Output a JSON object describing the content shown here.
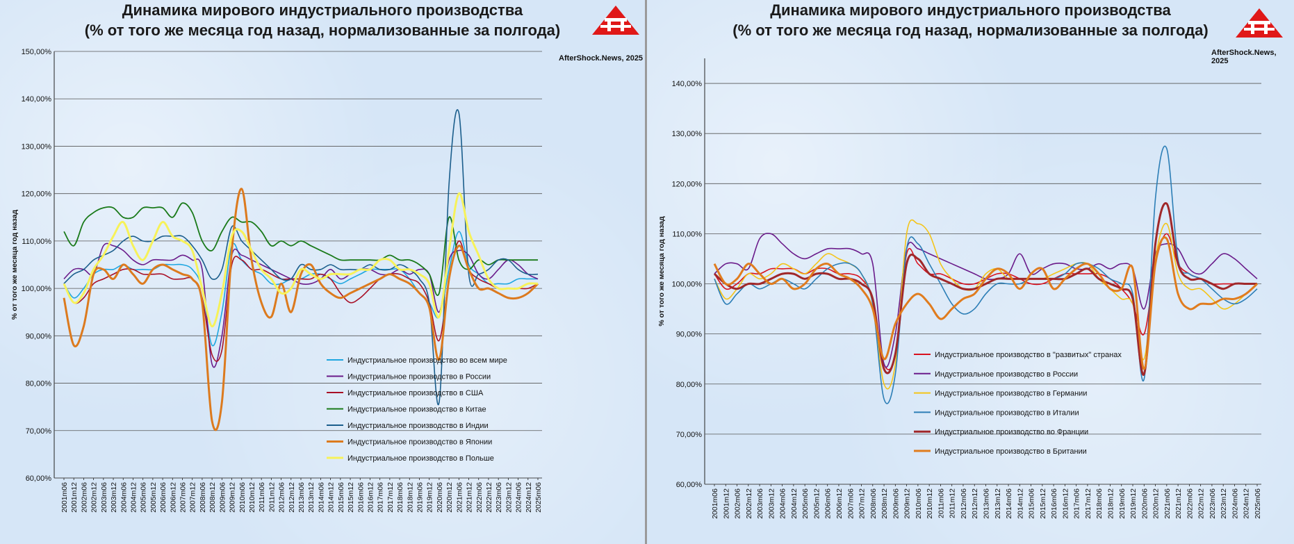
{
  "chart_data": [
    {
      "type": "line",
      "title_line1": "Динамика мирового индустриального производства",
      "title_line2": "(% от того же месяца год назад, нормализованные за полгода)",
      "credit": "AfterShock.News, 2025",
      "ylabel": "% от того же месяца год назад",
      "ylim": [
        60,
        150
      ],
      "yticks": [
        "60,00%",
        "70,00%",
        "80,00%",
        "90,00%",
        "100,00%",
        "110,00%",
        "120,00%",
        "130,00%",
        "140,00%",
        "150,00%"
      ],
      "x_tick_labels": [
        "2001m06",
        "2001m12",
        "2002m06",
        "2002m12",
        "2003m06",
        "2003m12",
        "2004m06",
        "2004m12",
        "2005m06",
        "2005m12",
        "2006m06",
        "2006m12",
        "2007m06",
        "2007m12",
        "2008m06",
        "2008m12",
        "2009m06",
        "2009m12",
        "2010m06",
        "2010m12",
        "2011m06",
        "2011m12",
        "2012m06",
        "2012m12",
        "2013m06",
        "2013m12",
        "2014m06",
        "2014m12",
        "2015m06",
        "2015m12",
        "2016m06",
        "2016m12",
        "2017m06",
        "2017m12",
        "2018m06",
        "2018m12",
        "2019m06",
        "2019m12",
        "2020m06",
        "2020m12",
        "2021m06",
        "2021m12",
        "2022m06",
        "2022m12",
        "2023m06",
        "2023m12",
        "2024m06",
        "2024m12",
        "2025m06"
      ],
      "x": [
        2001.5,
        2002.0,
        2002.5,
        2003.0,
        2003.5,
        2004.0,
        2004.5,
        2005.0,
        2005.5,
        2006.0,
        2006.5,
        2007.0,
        2007.5,
        2008.0,
        2008.5,
        2009.0,
        2009.5,
        2010.0,
        2010.5,
        2011.0,
        2011.5,
        2012.0,
        2012.5,
        2013.0,
        2013.5,
        2014.0,
        2014.5,
        2015.0,
        2015.5,
        2016.0,
        2016.5,
        2017.0,
        2017.5,
        2018.0,
        2018.5,
        2019.0,
        2019.5,
        2020.0,
        2020.5,
        2021.0,
        2021.5,
        2022.0,
        2022.5,
        2023.0,
        2023.5,
        2024.0,
        2024.5,
        2025.0,
        2025.5
      ],
      "legend_position": "bottom-right",
      "grid": true,
      "series": [
        {
          "name": "Индустриальное производство во всем мире",
          "color": "#1ea6e0",
          "width": 1.6,
          "values": [
            101,
            98,
            100,
            103,
            104,
            104,
            105,
            104,
            104,
            104,
            105,
            105,
            105,
            104,
            100,
            88,
            95,
            109,
            106,
            104,
            103,
            101,
            101,
            102,
            102,
            103,
            103,
            102,
            101,
            102,
            103,
            104,
            104,
            104,
            104,
            102,
            99,
            97,
            94,
            104,
            112,
            105,
            103,
            101,
            101,
            101,
            102,
            102,
            102
          ]
        },
        {
          "name": "Индустриальное производство в России",
          "color": "#6a1b8a",
          "width": 1.6,
          "values": [
            102,
            104,
            104,
            103,
            109,
            109,
            108,
            106,
            105,
            106,
            106,
            106,
            107,
            106,
            104,
            84,
            90,
            107,
            107,
            106,
            105,
            104,
            103,
            102,
            101,
            101,
            102,
            104,
            102,
            103,
            104,
            104,
            103,
            103,
            104,
            103,
            104,
            103,
            95,
            106,
            108,
            107,
            103,
            102,
            104,
            106,
            105,
            103,
            102
          ]
        },
        {
          "name": "Индустриальное производство в США",
          "color": "#a80f26",
          "width": 1.6,
          "values": [
            101,
            97,
            98,
            101,
            102,
            103,
            104,
            104,
            103,
            103,
            103,
            102,
            102,
            102,
            98,
            86,
            87,
            105,
            106,
            104,
            104,
            103,
            102,
            102,
            102,
            102,
            103,
            102,
            99,
            97,
            98,
            100,
            102,
            103,
            103,
            102,
            101,
            97,
            89,
            102,
            110,
            104,
            102,
            101,
            100,
            100,
            100,
            100,
            101
          ]
        },
        {
          "name": "Индустриальное производство в Китае",
          "color": "#1a7a1a",
          "width": 1.8,
          "values": [
            112,
            109,
            114,
            116,
            117,
            117,
            115,
            115,
            117,
            117,
            117,
            115,
            118,
            116,
            110,
            108,
            112,
            115,
            114,
            114,
            112,
            109,
            110,
            109,
            110,
            109,
            108,
            107,
            106,
            106,
            106,
            106,
            106,
            107,
            106,
            106,
            105,
            103,
            99,
            115,
            106,
            104,
            106,
            105,
            106,
            106,
            106,
            106,
            106
          ]
        },
        {
          "name": "Индустриальное производство в Индии",
          "color": "#1b5e8c",
          "width": 1.6,
          "values": [
            101,
            103,
            104,
            106,
            107,
            108,
            110,
            111,
            110,
            110,
            111,
            111,
            111,
            109,
            106,
            102,
            104,
            113,
            110,
            108,
            106,
            104,
            102,
            102,
            105,
            104,
            104,
            105,
            104,
            104,
            104,
            105,
            104,
            104,
            105,
            104,
            102,
            97,
            76,
            122,
            137,
            103,
            103,
            104,
            106,
            106,
            104,
            103,
            103
          ]
        },
        {
          "name": "Индустриальное производство в Японии",
          "color": "#dc7a1e",
          "width": 3,
          "values": [
            98,
            88,
            92,
            103,
            104,
            102,
            105,
            103,
            101,
            104,
            105,
            104,
            103,
            102,
            97,
            72,
            76,
            108,
            121,
            106,
            97,
            94,
            101,
            95,
            103,
            105,
            101,
            99,
            98,
            99,
            100,
            101,
            102,
            103,
            102,
            101,
            99,
            96,
            85,
            102,
            109,
            104,
            100,
            100,
            99,
            98,
            98,
            99,
            101
          ]
        },
        {
          "name": "Индустриальное производство в Польше",
          "color": "#f7f25a",
          "width": 3,
          "values": [
            101,
            97,
            99,
            104,
            107,
            111,
            114,
            109,
            106,
            110,
            114,
            111,
            110,
            108,
            100,
            92,
            99,
            111,
            112,
            108,
            104,
            102,
            99,
            100,
            104,
            103,
            102,
            103,
            103,
            103,
            104,
            104,
            106,
            106,
            104,
            104,
            103,
            101,
            94,
            108,
            120,
            112,
            107,
            102,
            100,
            100,
            100,
            101,
            101
          ]
        }
      ]
    },
    {
      "type": "line",
      "title_line1": "Динамика мирового индустриального производства",
      "title_line2": "(% от того же месяца год назад, нормализованные за полгода)",
      "credit": "AfterShock.News, 2025",
      "ylabel": "% от того же месяца год назад",
      "ylim": [
        60,
        145
      ],
      "yticks": [
        "60,00%",
        "70,00%",
        "80,00%",
        "90,00%",
        "100,00%",
        "110,00%",
        "120,00%",
        "130,00%",
        "140,00%"
      ],
      "x_tick_labels": [
        "2001m06",
        "2001m12",
        "2002m06",
        "2002m12",
        "2003m06",
        "2003m12",
        "2004m06",
        "2004m12",
        "2005m06",
        "2005m12",
        "2006m06",
        "2006m12",
        "2007m06",
        "2007m12",
        "2008m06",
        "2008m12",
        "2009m06",
        "2009m12",
        "2010m06",
        "2010m12",
        "2011m06",
        "2011m12",
        "2012m06",
        "2012m12",
        "2013m06",
        "2013m12",
        "2014m06",
        "2014m12",
        "2015m06",
        "2015m12",
        "2016m06",
        "2016m12",
        "2017m06",
        "2017m12",
        "2018m06",
        "2018m12",
        "2019m06",
        "2019m12",
        "2020m06",
        "2020m12",
        "2021m06",
        "2021m12",
        "2022m06",
        "2022m12",
        "2023m06",
        "2023m12",
        "2024m06",
        "2024m12",
        "2025m06"
      ],
      "x": [
        2001.5,
        2002.0,
        2002.5,
        2003.0,
        2003.5,
        2004.0,
        2004.5,
        2005.0,
        2005.5,
        2006.0,
        2006.5,
        2007.0,
        2007.5,
        2008.0,
        2008.5,
        2009.0,
        2009.5,
        2010.0,
        2010.5,
        2011.0,
        2011.5,
        2012.0,
        2012.5,
        2013.0,
        2013.5,
        2014.0,
        2014.5,
        2015.0,
        2015.5,
        2016.0,
        2016.5,
        2017.0,
        2017.5,
        2018.0,
        2018.5,
        2019.0,
        2019.5,
        2020.0,
        2020.5,
        2021.0,
        2021.5,
        2022.0,
        2022.5,
        2023.0,
        2023.5,
        2024.0,
        2024.5,
        2025.0,
        2025.5
      ],
      "legend_position": "bottom-center",
      "grid": true,
      "series": [
        {
          "name": "Индустриальное производство в \"развитых\" странах",
          "color": "#d8101e",
          "width": 1.6,
          "values": [
            102,
            99,
            100,
            102,
            102,
            103,
            103,
            103,
            102,
            103,
            103,
            102,
            102,
            101,
            97,
            84,
            86,
            106,
            104,
            102,
            102,
            101,
            100,
            100,
            101,
            102,
            102,
            101,
            100,
            100,
            101,
            102,
            102,
            102,
            102,
            101,
            99,
            96,
            90,
            104,
            110,
            104,
            102,
            101,
            100,
            100,
            100,
            100,
            100
          ]
        },
        {
          "name": "Индустриальное производство в России",
          "color": "#6a1b8a",
          "width": 1.6,
          "values": [
            102,
            104,
            104,
            103,
            109,
            110,
            108,
            106,
            105,
            106,
            107,
            107,
            107,
            106,
            104,
            84,
            90,
            107,
            107,
            106,
            105,
            104,
            103,
            102,
            101,
            101,
            102,
            106,
            102,
            103,
            104,
            104,
            103,
            103,
            104,
            103,
            104,
            103,
            95,
            106,
            108,
            107,
            103,
            102,
            104,
            106,
            105,
            103,
            101
          ]
        },
        {
          "name": "Индустриальное производство в Германии",
          "color": "#f4c418",
          "width": 1.6,
          "values": [
            101,
            97,
            99,
            102,
            101,
            102,
            104,
            103,
            102,
            104,
            106,
            105,
            104,
            102,
            96,
            80,
            84,
            110,
            112,
            110,
            104,
            101,
            99,
            99,
            102,
            103,
            101,
            101,
            101,
            101,
            102,
            103,
            104,
            104,
            101,
            99,
            97,
            96,
            85,
            105,
            112,
            102,
            99,
            99,
            97,
            95,
            96,
            98,
            100
          ]
        },
        {
          "name": "Индустриальное производство в Италии",
          "color": "#2c7eb6",
          "width": 1.6,
          "values": [
            101,
            96,
            98,
            100,
            99,
            100,
            101,
            100,
            99,
            101,
            103,
            104,
            104,
            102,
            96,
            77,
            82,
            107,
            108,
            104,
            100,
            96,
            94,
            95,
            98,
            100,
            100,
            100,
            101,
            101,
            101,
            102,
            104,
            104,
            103,
            101,
            100,
            98,
            81,
            117,
            127,
            105,
            102,
            101,
            99,
            97,
            96,
            97,
            99
          ]
        },
        {
          "name": "Индустриальное производство во Франции",
          "color": "#a0282a",
          "width": 3,
          "values": [
            102,
            100,
            99,
            100,
            100,
            101,
            102,
            102,
            101,
            102,
            102,
            101,
            101,
            100,
            97,
            83,
            86,
            104,
            105,
            102,
            101,
            100,
            99,
            99,
            100,
            101,
            101,
            101,
            101,
            101,
            101,
            101,
            102,
            103,
            101,
            100,
            99,
            97,
            82,
            108,
            116,
            104,
            101,
            101,
            100,
            99,
            100,
            100,
            100
          ]
        },
        {
          "name": "Индустриальное производство в Британии",
          "color": "#e07c1e",
          "width": 3,
          "values": [
            104,
            100,
            101,
            104,
            102,
            100,
            101,
            99,
            100,
            103,
            104,
            102,
            101,
            99,
            95,
            85,
            92,
            96,
            98,
            96,
            93,
            95,
            97,
            98,
            101,
            103,
            102,
            99,
            102,
            103,
            99,
            101,
            103,
            104,
            102,
            99,
            99,
            103,
            83,
            104,
            109,
            98,
            95,
            96,
            96,
            97,
            97,
            98,
            100
          ]
        }
      ]
    }
  ]
}
